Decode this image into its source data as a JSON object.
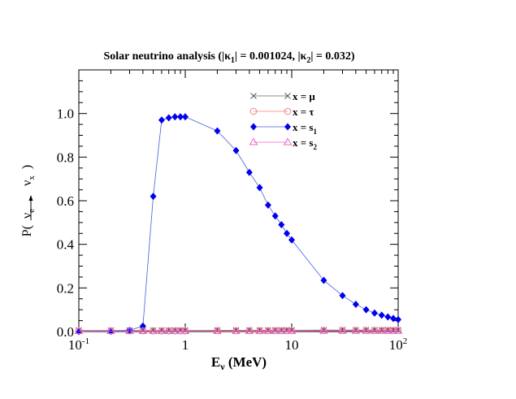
{
  "chart_data": {
    "type": "line",
    "title": {
      "prefix": "Solar neutrino analysis (|κ",
      "sub1": "1",
      "mid": "| = 0.001024, |κ",
      "sub2": "2",
      "suffix": "| = 0.032)"
    },
    "xlabel": {
      "main": "E",
      "sub": "ν",
      "unit": " (MeV)"
    },
    "ylabel": {
      "prefix": "P(",
      "nu1": "ν",
      "sub1": "e",
      "nu2": "ν",
      "sub2": "x",
      "suffix": ")"
    },
    "xscale": "log",
    "xlim": [
      0.1,
      100
    ],
    "ylim": [
      0.0,
      1.2
    ],
    "xticks": [
      {
        "value": 0.1,
        "base": "10",
        "exp": "-1"
      },
      {
        "value": 1,
        "base": "1",
        "exp": ""
      },
      {
        "value": 10,
        "base": "10",
        "exp": ""
      },
      {
        "value": 100,
        "base": "10",
        "exp": "2"
      }
    ],
    "yticks": [
      {
        "value": 0.0,
        "label": "0.0"
      },
      {
        "value": 0.2,
        "label": "0.2"
      },
      {
        "value": 0.4,
        "label": "0.4"
      },
      {
        "value": 0.6,
        "label": "0.6"
      },
      {
        "value": 0.8,
        "label": "0.8"
      },
      {
        "value": 1.0,
        "label": "1.0"
      }
    ],
    "grid": false,
    "legend_position": "top-right",
    "series": [
      {
        "name": {
          "main": "x = μ",
          "sub": ""
        },
        "marker": "cross",
        "color": "#555555",
        "linecolor": "#666666",
        "x": [
          0.1,
          0.2,
          0.3,
          0.4,
          0.5,
          0.6,
          0.7,
          0.8,
          0.9,
          1,
          2,
          3,
          4,
          5,
          6,
          7,
          8,
          9,
          10,
          20,
          30,
          40,
          50,
          60,
          70,
          80,
          90,
          100
        ],
        "y": [
          0.005,
          0.005,
          0.005,
          0.005,
          0.005,
          0.005,
          0.005,
          0.005,
          0.005,
          0.005,
          0.006,
          0.006,
          0.006,
          0.006,
          0.006,
          0.006,
          0.006,
          0.006,
          0.006,
          0.007,
          0.007,
          0.007,
          0.007,
          0.007,
          0.007,
          0.007,
          0.007,
          0.007
        ]
      },
      {
        "name": {
          "main": "x = τ",
          "sub": ""
        },
        "marker": "circle",
        "color": "#f08080",
        "linecolor": "#f08080",
        "x": [
          0.1,
          0.2,
          0.3,
          0.4,
          0.5,
          0.6,
          0.7,
          0.8,
          0.9,
          1,
          2,
          3,
          4,
          5,
          6,
          7,
          8,
          9,
          10,
          20,
          30,
          40,
          50,
          60,
          70,
          80,
          90,
          100
        ],
        "y": [
          0.003,
          0.003,
          0.003,
          0.003,
          0.003,
          0.003,
          0.003,
          0.003,
          0.003,
          0.003,
          0.004,
          0.004,
          0.004,
          0.004,
          0.004,
          0.004,
          0.004,
          0.004,
          0.004,
          0.005,
          0.005,
          0.005,
          0.005,
          0.005,
          0.005,
          0.005,
          0.005,
          0.005
        ]
      },
      {
        "name": {
          "main": "x = s",
          "sub": "1"
        },
        "marker": "diamond",
        "color": "#0000ee",
        "linecolor": "#4060e0",
        "x": [
          0.1,
          0.2,
          0.3,
          0.4,
          0.5,
          0.6,
          0.7,
          0.8,
          0.9,
          1,
          2,
          3,
          4,
          5,
          6,
          7,
          8,
          9,
          10,
          20,
          30,
          40,
          50,
          60,
          70,
          80,
          90,
          100
        ],
        "y": [
          0.001,
          0.002,
          0.006,
          0.025,
          0.62,
          0.97,
          0.98,
          0.985,
          0.985,
          0.985,
          0.92,
          0.83,
          0.73,
          0.66,
          0.58,
          0.53,
          0.49,
          0.45,
          0.42,
          0.235,
          0.165,
          0.125,
          0.1,
          0.085,
          0.075,
          0.067,
          0.06,
          0.055
        ]
      },
      {
        "name": {
          "main": "x = s",
          "sub": "2"
        },
        "marker": "triangle",
        "color": "#ee66cc",
        "linecolor": "#ee66cc",
        "x": [
          0.1,
          0.2,
          0.3,
          0.4,
          0.5,
          0.6,
          0.7,
          0.8,
          0.9,
          1,
          2,
          3,
          4,
          5,
          6,
          7,
          8,
          9,
          10,
          20,
          30,
          40,
          50,
          60,
          70,
          80,
          90,
          100
        ],
        "y": [
          0.002,
          0.002,
          0.002,
          0.002,
          0.002,
          0.002,
          0.002,
          0.002,
          0.002,
          0.002,
          0.002,
          0.002,
          0.002,
          0.002,
          0.002,
          0.002,
          0.002,
          0.002,
          0.002,
          0.003,
          0.003,
          0.003,
          0.003,
          0.003,
          0.003,
          0.003,
          0.003,
          0.003
        ]
      }
    ]
  }
}
